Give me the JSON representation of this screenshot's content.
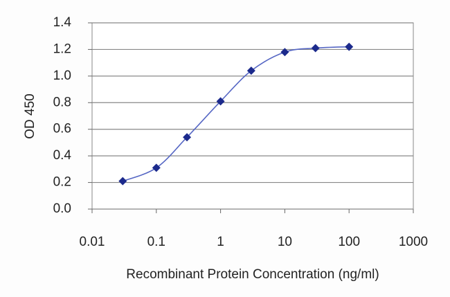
{
  "chart_data": {
    "type": "line",
    "x_label": "Recombinant Protein Concentration (ng/ml)",
    "y_label": "OD 450",
    "xscale": "log",
    "x": [
      0.03,
      0.1,
      0.3,
      1,
      3,
      10,
      30,
      100
    ],
    "series": [
      {
        "name": "OD 450",
        "color": "#1c2a8c",
        "line_color": "#5566c4",
        "values": [
          0.21,
          0.31,
          0.54,
          0.81,
          1.04,
          1.18,
          1.21,
          1.22
        ]
      }
    ],
    "xlim": [
      0.01,
      1000
    ],
    "xticks": [
      0.01,
      0.1,
      1,
      10,
      100,
      1000
    ],
    "ylim": [
      0,
      1.4
    ],
    "yticks": [
      {
        "value": 0,
        "label": "0.0"
      },
      0.2,
      0.4,
      0.6,
      0.8,
      {
        "value": 1,
        "label": "1.0"
      },
      1.2,
      1.4
    ],
    "grid": true
  }
}
